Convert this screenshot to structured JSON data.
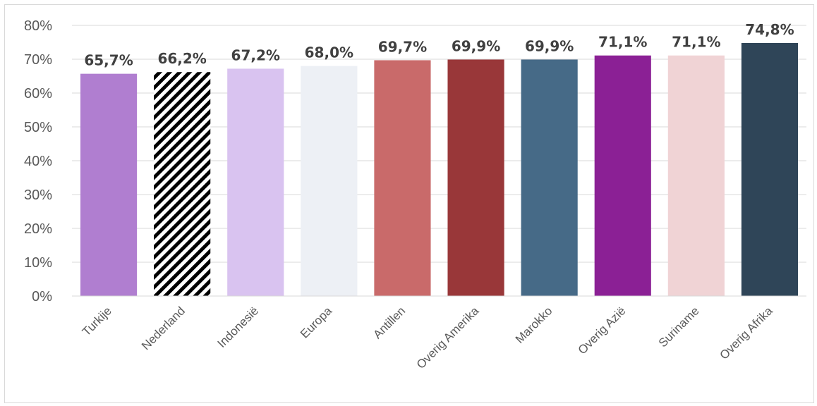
{
  "chart_data": {
    "type": "bar",
    "title": "",
    "xlabel": "",
    "ylabel": "",
    "ylim": [
      0,
      80
    ],
    "y_ticks": [
      "0%",
      "10%",
      "20%",
      "30%",
      "40%",
      "50%",
      "60%",
      "70%",
      "80%"
    ],
    "grid": true,
    "legend": "none",
    "categories": [
      "Turkije",
      "Nederland",
      "Indonesië",
      "Europa",
      "Antillen",
      "Overig Amerika",
      "Marokko",
      "Overig Azië",
      "Suriname",
      "Overig Afrika"
    ],
    "values": [
      65.7,
      66.2,
      67.2,
      68.0,
      69.7,
      69.9,
      69.9,
      71.1,
      71.1,
      74.8
    ],
    "data_labels": [
      "65,7%",
      "66,2%",
      "67,2%",
      "68,0%",
      "69,7%",
      "69,9%",
      "69,9%",
      "71,1%",
      "71,1%",
      "74,8%"
    ],
    "colors": [
      "#b07ed0",
      "pattern-black-white-diagonal",
      "#d9c3f0",
      "#edf0f5",
      "#c96a6a",
      "#993739",
      "#466a87",
      "#8b2095",
      "#f0d3d5",
      "#2f4558"
    ]
  }
}
